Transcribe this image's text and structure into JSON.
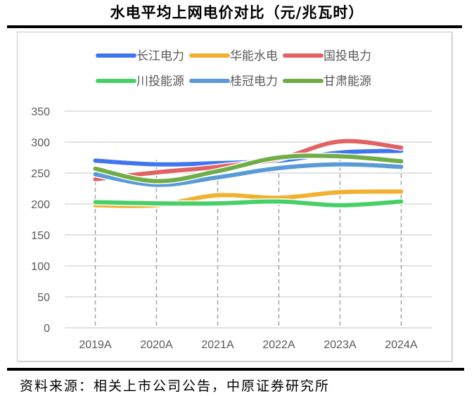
{
  "title": "水电平均上网电价对比（元/兆瓦时）",
  "source": "资料来源：相关上市公司公告，中原证券研究所",
  "chart_data": {
    "type": "line",
    "title": "水电平均上网电价对比（元/兆瓦时）",
    "xlabel": "",
    "ylabel": "",
    "categories": [
      "2019A",
      "2020A",
      "2021A",
      "2022A",
      "2023A",
      "2024A"
    ],
    "ylim": [
      0,
      350
    ],
    "yticks": [
      0,
      50,
      100,
      150,
      200,
      250,
      300,
      350
    ],
    "ytick_labels": [
      "0",
      "50",
      "100",
      "150",
      "200",
      "250",
      "300",
      "350"
    ],
    "grid": true,
    "legend_position": "top",
    "series": [
      {
        "name": "长江电力",
        "color": "#3F76F0",
        "values": [
          270,
          264,
          266,
          270,
          283,
          286
        ]
      },
      {
        "name": "华能水电",
        "color": "#F0B030",
        "values": [
          198,
          198,
          214,
          210,
          219,
          220
        ]
      },
      {
        "name": "国投电力",
        "color": "#E06262",
        "values": [
          240,
          251,
          260,
          273,
          301,
          291
        ]
      },
      {
        "name": "川投能源",
        "color": "#48D068",
        "values": [
          203,
          201,
          201,
          204,
          198,
          204
        ]
      },
      {
        "name": "桂冠电力",
        "color": "#5B9BD5",
        "values": [
          248,
          231,
          243,
          258,
          264,
          260
        ]
      },
      {
        "name": "甘肃能源",
        "color": "#70AD47",
        "values": [
          257,
          237,
          253,
          275,
          277,
          269
        ]
      }
    ]
  }
}
